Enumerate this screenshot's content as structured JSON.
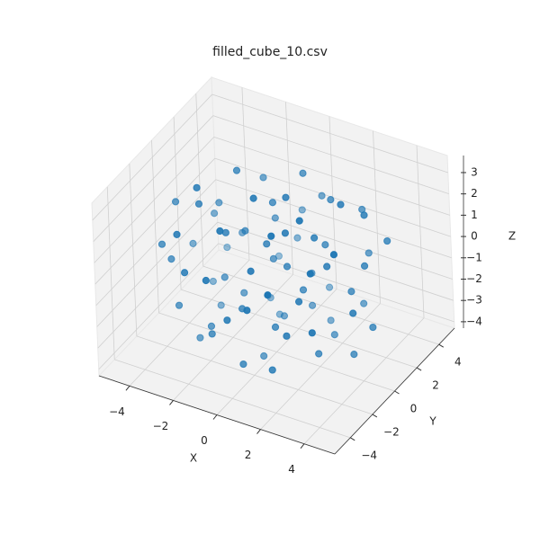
{
  "chart_data": {
    "type": "scatter3d",
    "title": "filled_cube_10.csv",
    "x_label": "X",
    "y_label": "Y",
    "z_label": "Z",
    "color": "#1f77b4",
    "xlim": [
      -5.4,
      5.4
    ],
    "ylim": [
      -5.4,
      5.4
    ],
    "zlim": [
      -4.3,
      3.8
    ],
    "xticks": [
      {
        "value": -4,
        "label": "−4"
      },
      {
        "value": -2,
        "label": "−2"
      },
      0,
      2,
      4
    ],
    "yticks": [
      {
        "value": -4,
        "label": "−4"
      },
      {
        "value": -2,
        "label": "−2"
      },
      0,
      2,
      4
    ],
    "zticks": [
      {
        "value": -4,
        "label": "−4"
      },
      {
        "value": -3,
        "label": "−3"
      },
      {
        "value": -2,
        "label": "−2"
      },
      {
        "value": -1,
        "label": "−1"
      },
      0,
      1,
      2,
      3
    ],
    "grid": true,
    "x": [
      -3.2,
      2.1,
      0.5,
      -1.8,
      3.6,
      -0.7,
      1.4,
      -2.9,
      0.2,
      4.1,
      -4.0,
      1.9,
      -1.2,
      2.8,
      -2.3,
      0.9,
      -0.4,
      3.0,
      -3.5,
      1.1,
      -1.6,
      2.4,
      -0.9,
      0.3,
      -2.6,
      3.3,
      -0.1,
      1.7,
      -3.8,
      0.6,
      -1.9,
      2.6,
      -0.5,
      4.3,
      -2.1,
      1.3,
      -3.1,
      0.0,
      2.2,
      -1.4,
      3.7,
      -0.8,
      1.6,
      -2.7,
      0.4,
      -4.3,
      2.9,
      -0.2,
      1.0,
      -1.1,
      3.1,
      -2.4,
      0.8,
      -3.6,
      2.0,
      -0.6,
      1.5,
      -2.0,
      4.0,
      -1.3,
      0.1,
      2.7,
      -3.3,
      1.2,
      -0.3,
      3.4,
      -1.7,
      0.7,
      -2.5,
      2.3,
      -4.1,
      1.8,
      -1.0,
      3.8,
      -0.7,
      0.9,
      -2.8,
      2.5,
      -1.5,
      0.2
    ],
    "y": [
      1.5,
      -3.0,
      0.4,
      -2.2,
      1.2,
      3.5,
      2.6,
      -0.8,
      -1.5,
      -0.9,
      0.6,
      -1.1,
      1.9,
      3.1,
      -3.4,
      -4.1,
      0.8,
      -2.4,
      2.6,
      1.2,
      -1.0,
      0.6,
      -2.8,
      3.9,
      0.2,
      1.9,
      -0.3,
      -3.6,
      -1.7,
      2.2,
      3.0,
      -0.2,
      -1.9,
      0.4,
      1.1,
      0.1,
      -2.5,
      2.9,
      -2.0,
      0.0,
      -1.6,
      4.2,
      1.6,
      -1.3,
      -2.7,
      -0.2,
      2.3,
      -3.8,
      -0.7,
      2.4,
      0.9,
      -2.1,
      3.3,
      1.8,
      -4.3,
      1.3,
      2.0,
      -0.5,
      2.5,
      -3.1,
      0.6,
      -1.4,
      0.9,
      -2.3,
      -0.9,
      -3.2,
      3.7,
      -0.1,
      2.1,
      3.6,
      -1.9,
      0.3,
      -4.0,
      -0.4,
      1.7,
      -1.7,
      -3.0,
      1.4,
      0.5,
      -3.3
    ],
    "z": [
      0.8,
      -1.2,
      2.9,
      -2.5,
      0.3,
      -1.1,
      1.9,
      2.1,
      -3.6,
      -0.6,
      -0.9,
      3.1,
      -3.2,
      -0.4,
      0.5,
      0.2,
      -0.5,
      1.7,
      -2.0,
      -2.4,
      1.3,
      -3.0,
      2.6,
      1.0,
      -3.1,
      2.2,
      0.9,
      -2.6,
      -0.3,
      -1.6,
      1.6,
      0.7,
      -1.4,
      -1.9,
      2.9,
      -1.0,
      -1.8,
      2.5,
      -0.1,
      -2.0,
      2.4,
      -0.2,
      0.4,
      3.2,
      1.1,
      1.4,
      -2.3,
      -0.8,
      2.0,
      0.3,
      -0.9,
      -3.3,
      -2.8,
      0.0,
      1.4,
      1.8,
      -3.4,
      -1.2,
      0.9,
      -2.2,
      -2.9,
      -2.7,
      -2.6,
      2.8,
      3.3,
      -0.5,
      -2.4,
      0.0,
      -0.7,
      1.2,
      0.4,
      1.5,
      0.9,
      -2.9,
      -3.7,
      -1.9,
      1.9,
      2.7,
      0.6,
      -3.0
    ]
  }
}
